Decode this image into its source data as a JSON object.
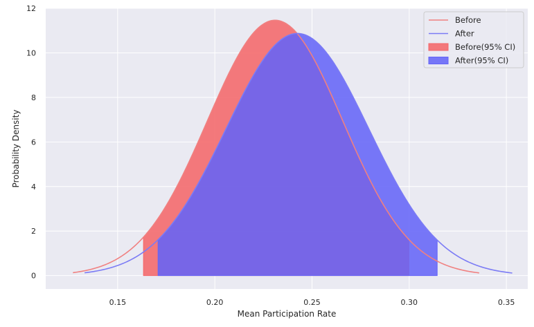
{
  "chart_data": {
    "type": "line",
    "xlabel": "Mean Participation Rate",
    "ylabel": "Probability Density",
    "xlim": [
      0.113,
      0.361
    ],
    "ylim": [
      -0.6,
      12
    ],
    "x_ticks": [
      0.15,
      0.2,
      0.25,
      0.3,
      0.35
    ],
    "x_tick_labels": [
      "0.15",
      "0.20",
      "0.25",
      "0.30",
      "0.35"
    ],
    "y_ticks": [
      0,
      2,
      4,
      6,
      8,
      10,
      12
    ],
    "y_tick_labels": [
      "0",
      "2",
      "4",
      "6",
      "8",
      "10",
      "12"
    ],
    "grid": true,
    "legend_position": "top-right",
    "series": [
      {
        "name": "Before",
        "color": "#f08080",
        "x_range": [
          0.127,
          0.336
        ],
        "mean": 0.231,
        "std": 0.0348,
        "ci": [
          0.1633,
          0.2998
        ],
        "ci_label": "Before(95% CI)",
        "ci_color": "#f46669"
      },
      {
        "name": "After",
        "color": "#7b7bf5",
        "x_range": [
          0.133,
          0.353
        ],
        "mean": 0.2425,
        "std": 0.0367,
        "ci": [
          0.1708,
          0.3144
        ],
        "ci_label": "After(95% CI)",
        "ci_color": "#6464f7"
      }
    ]
  }
}
